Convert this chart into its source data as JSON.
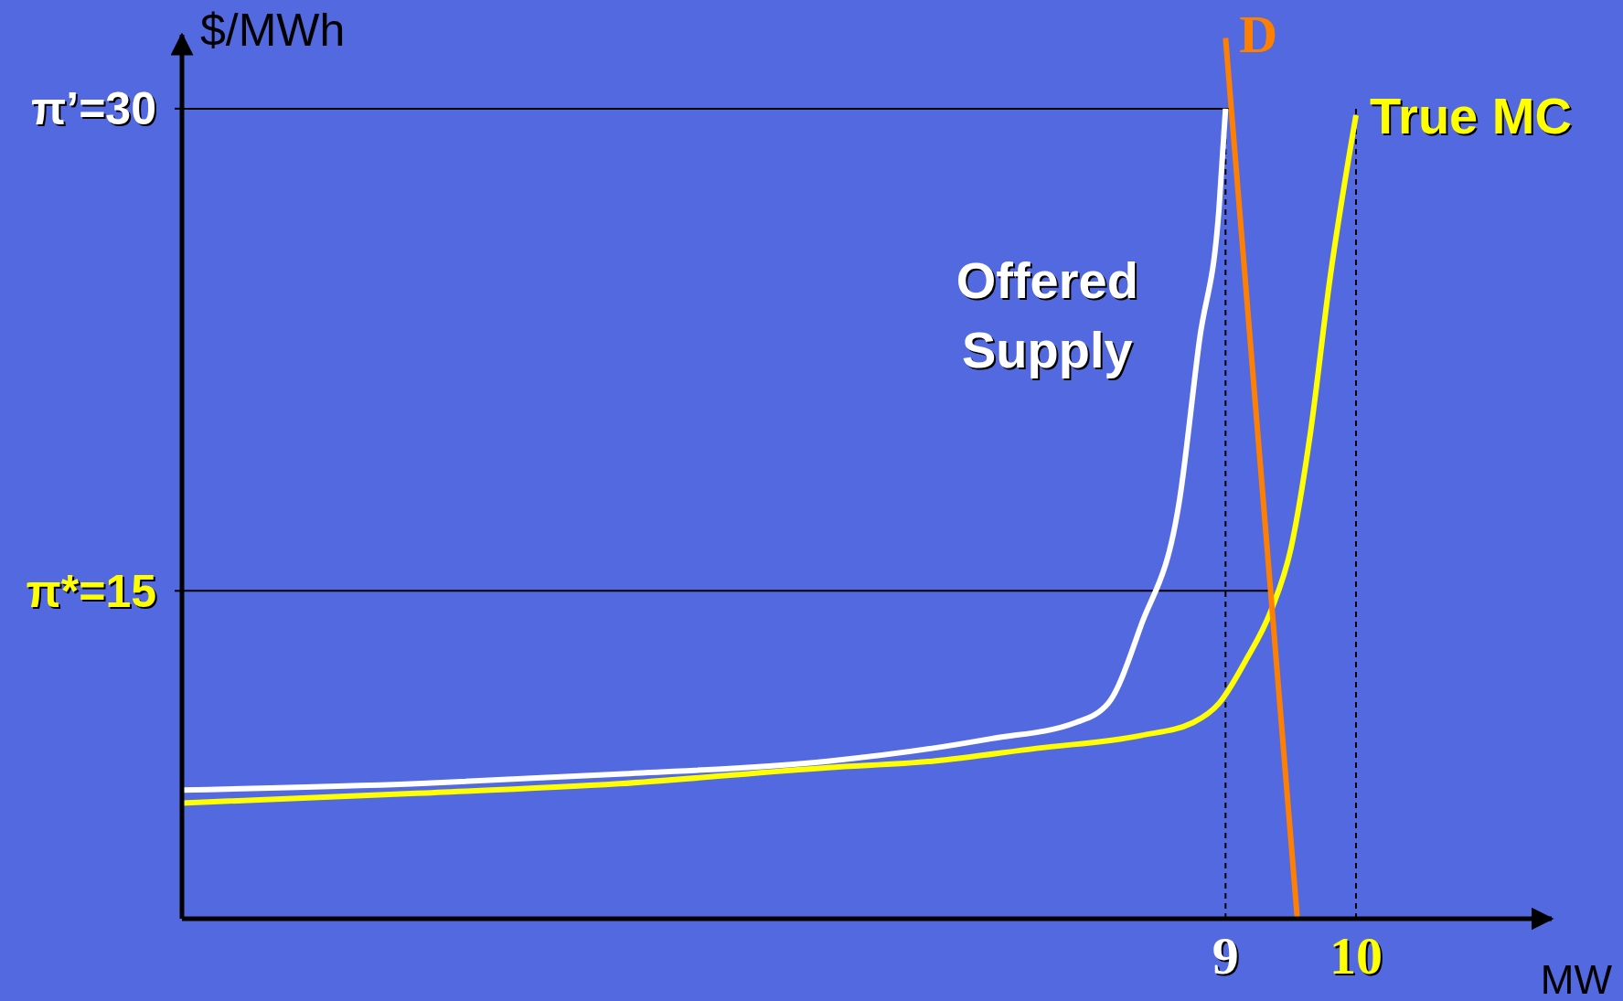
{
  "chart_data": {
    "type": "line",
    "xlabel": "MW",
    "ylabel": "$/MWh",
    "xlim": [
      1,
      11.5
    ],
    "ylim": [
      4.8,
      32.3
    ],
    "xticks": [
      9,
      10
    ],
    "yticks": [
      {
        "value": 15,
        "label": "π*=15"
      },
      {
        "value": 30,
        "label": "π’=30"
      }
    ],
    "legend": false,
    "grid": false,
    "line_style": "solid",
    "series": [
      {
        "name": "Offered Supply",
        "color": "#ffffff",
        "x": [
          1,
          2.8,
          4.35,
          5.95,
          6.75,
          7.2,
          7.85,
          8.1,
          8.35,
          8.65,
          8.8,
          8.95,
          9
        ],
        "values": [
          8.8,
          9,
          9.3,
          9.7,
          10.1,
          10.4,
          10.9,
          11.5,
          13.9,
          17.9,
          22.8,
          26.9,
          30
        ]
      },
      {
        "name": "True MC",
        "color": "#ffff00",
        "x": [
          1,
          2.8,
          4.35,
          5.95,
          6.75,
          7.55,
          8.35,
          8.75,
          8.95,
          9.15,
          9.35,
          9.5,
          9.65,
          9.8,
          10
        ],
        "values": [
          8.4,
          8.7,
          9,
          9.5,
          9.7,
          10.1,
          10.5,
          10.9,
          11.5,
          12.8,
          14.4,
          16.3,
          19.9,
          24.7,
          29.8
        ]
      },
      {
        "name": "D",
        "color": "#ff8000",
        "x": [
          9,
          9.55
        ],
        "values": [
          32.2,
          4.8
        ]
      }
    ],
    "ref_lines": [
      {
        "axis": "y",
        "value": 30,
        "color": "#000000",
        "line_style": "solid"
      },
      {
        "axis": "y",
        "value": 15,
        "color": "#000000",
        "line_style": "solid"
      },
      {
        "axis": "x",
        "value": 9,
        "color": "#000000",
        "line_style": "dashed"
      },
      {
        "axis": "x",
        "value": 10,
        "color": "#000000",
        "line_style": "dashed"
      }
    ]
  }
}
